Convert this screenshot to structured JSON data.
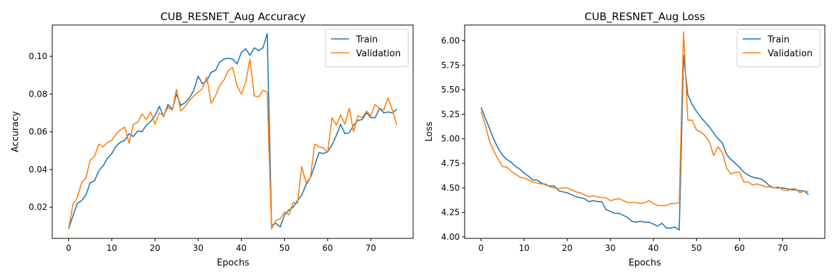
{
  "chart_data": [
    {
      "type": "line",
      "title": "CUB_RESNET_Aug Accuracy",
      "xlabel": "Epochs",
      "ylabel": "Accuracy",
      "xlim": [
        -3.8,
        79.8
      ],
      "ylim": [
        0.0035,
        0.1166
      ],
      "xticks": [
        0,
        10,
        20,
        30,
        40,
        50,
        60,
        70
      ],
      "yticks": [
        0.02,
        0.04,
        0.06,
        0.08,
        0.1
      ],
      "ytick_labels": [
        "0.02",
        "0.04",
        "0.06",
        "0.08",
        "0.10"
      ],
      "grid": false,
      "legend": "upper right",
      "x": [
        0,
        1,
        2,
        3,
        4,
        5,
        6,
        7,
        8,
        9,
        10,
        11,
        12,
        13,
        14,
        15,
        16,
        17,
        18,
        19,
        20,
        21,
        22,
        23,
        24,
        25,
        26,
        27,
        28,
        29,
        30,
        31,
        32,
        33,
        34,
        35,
        36,
        37,
        38,
        39,
        40,
        41,
        42,
        43,
        44,
        45,
        46,
        47,
        48,
        49,
        50,
        51,
        52,
        53,
        54,
        55,
        56,
        57,
        58,
        59,
        60,
        61,
        62,
        63,
        64,
        65,
        66,
        67,
        68,
        69,
        70,
        71,
        72,
        73,
        74,
        75,
        76
      ],
      "series": [
        {
          "name": "Train",
          "color": "#1f77b4",
          "values": [
            0.0085,
            0.0155,
            0.022,
            0.0235,
            0.0265,
            0.033,
            0.034,
            0.0395,
            0.042,
            0.046,
            0.0485,
            0.0525,
            0.0545,
            0.0555,
            0.059,
            0.0575,
            0.0605,
            0.06,
            0.0635,
            0.0655,
            0.0685,
            0.0735,
            0.068,
            0.0745,
            0.072,
            0.08,
            0.074,
            0.0755,
            0.078,
            0.082,
            0.0895,
            0.0855,
            0.087,
            0.0915,
            0.0925,
            0.097,
            0.0985,
            0.099,
            0.0985,
            0.096,
            0.102,
            0.104,
            0.1005,
            0.1045,
            0.103,
            0.1045,
            0.112,
            0.0105,
            0.0115,
            0.0095,
            0.016,
            0.0185,
            0.02,
            0.0235,
            0.0265,
            0.032,
            0.0355,
            0.042,
            0.049,
            0.0485,
            0.0495,
            0.053,
            0.058,
            0.064,
            0.059,
            0.0595,
            0.0635,
            0.066,
            0.0665,
            0.07,
            0.0675,
            0.0675,
            0.0725,
            0.07,
            0.0705,
            0.07,
            0.072
          ]
        },
        {
          "name": "Validation",
          "color": "#ff7f0e",
          "values": [
            0.0085,
            0.0215,
            0.025,
            0.033,
            0.0355,
            0.045,
            0.047,
            0.0535,
            0.052,
            0.0545,
            0.0555,
            0.059,
            0.061,
            0.0625,
            0.054,
            0.064,
            0.065,
            0.0695,
            0.0665,
            0.0705,
            0.064,
            0.07,
            0.0685,
            0.073,
            0.0715,
            0.0825,
            0.071,
            0.0735,
            0.0765,
            0.079,
            0.081,
            0.083,
            0.089,
            0.075,
            0.079,
            0.0845,
            0.0875,
            0.0925,
            0.094,
            0.0845,
            0.08,
            0.086,
            0.0985,
            0.079,
            0.0785,
            0.082,
            0.081,
            0.0085,
            0.013,
            0.014,
            0.0175,
            0.016,
            0.0225,
            0.022,
            0.0415,
            0.033,
            0.0355,
            0.0535,
            0.052,
            0.0515,
            0.049,
            0.0675,
            0.0635,
            0.069,
            0.064,
            0.0725,
            0.06,
            0.0685,
            0.0675,
            0.071,
            0.0685,
            0.0745,
            0.0725,
            0.0715,
            0.078,
            0.0715,
            0.0635
          ]
        }
      ]
    },
    {
      "type": "line",
      "title": "CUB_RESNET_Aug Loss",
      "xlabel": "Epochs",
      "ylabel": "Loss",
      "xlim": [
        -3.8,
        79.8
      ],
      "ylim": [
        3.985,
        6.16
      ],
      "xticks": [
        0,
        10,
        20,
        30,
        40,
        50,
        60,
        70
      ],
      "yticks": [
        4.0,
        4.25,
        4.5,
        4.75,
        5.0,
        5.25,
        5.5,
        5.75,
        6.0
      ],
      "ytick_labels": [
        "4.00",
        "4.25",
        "4.50",
        "4.75",
        "5.00",
        "5.25",
        "5.50",
        "5.75",
        "6.00"
      ],
      "grid": false,
      "legend": "upper right",
      "x": [
        0,
        1,
        2,
        3,
        4,
        5,
        6,
        7,
        8,
        9,
        10,
        11,
        12,
        13,
        14,
        15,
        16,
        17,
        18,
        19,
        20,
        21,
        22,
        23,
        24,
        25,
        26,
        27,
        28,
        29,
        30,
        31,
        32,
        33,
        34,
        35,
        36,
        37,
        38,
        39,
        40,
        41,
        42,
        43,
        44,
        45,
        46,
        47,
        48,
        49,
        50,
        51,
        52,
        53,
        54,
        55,
        56,
        57,
        58,
        59,
        60,
        61,
        62,
        63,
        64,
        65,
        66,
        67,
        68,
        69,
        70,
        71,
        72,
        73,
        74,
        75,
        76
      ],
      "series": [
        {
          "name": "Train",
          "color": "#1f77b4",
          "values": [
            5.32,
            5.21,
            5.1,
            4.99,
            4.9,
            4.83,
            4.79,
            4.76,
            4.72,
            4.69,
            4.65,
            4.62,
            4.58,
            4.58,
            4.55,
            4.53,
            4.52,
            4.52,
            4.47,
            4.46,
            4.45,
            4.43,
            4.41,
            4.4,
            4.39,
            4.36,
            4.37,
            4.36,
            4.36,
            4.28,
            4.26,
            4.24,
            4.24,
            4.22,
            4.2,
            4.16,
            4.15,
            4.16,
            4.15,
            4.15,
            4.13,
            4.11,
            4.14,
            4.09,
            4.09,
            4.1,
            4.07,
            5.85,
            5.45,
            5.35,
            5.28,
            5.22,
            5.17,
            5.12,
            5.06,
            5.0,
            4.96,
            4.84,
            4.79,
            4.75,
            4.71,
            4.66,
            4.63,
            4.61,
            4.6,
            4.59,
            4.56,
            4.52,
            4.5,
            4.5,
            4.5,
            4.49,
            4.48,
            4.48,
            4.47,
            4.47,
            4.43
          ]
        },
        {
          "name": "Validation",
          "color": "#ff7f0e",
          "values": [
            5.28,
            5.14,
            4.97,
            4.87,
            4.79,
            4.72,
            4.71,
            4.67,
            4.64,
            4.61,
            4.6,
            4.58,
            4.56,
            4.55,
            4.54,
            4.54,
            4.51,
            4.5,
            4.49,
            4.5,
            4.5,
            4.48,
            4.46,
            4.45,
            4.43,
            4.41,
            4.42,
            4.41,
            4.4,
            4.4,
            4.37,
            4.38,
            4.39,
            4.37,
            4.35,
            4.35,
            4.35,
            4.34,
            4.35,
            4.37,
            4.34,
            4.32,
            4.32,
            4.32,
            4.34,
            4.34,
            4.35,
            6.09,
            5.19,
            5.19,
            5.09,
            5.07,
            5.03,
            4.97,
            4.83,
            4.92,
            4.86,
            4.7,
            4.64,
            4.66,
            4.66,
            4.56,
            4.56,
            4.53,
            4.54,
            4.53,
            4.51,
            4.51,
            4.5,
            4.51,
            4.48,
            4.47,
            4.49,
            4.49,
            4.45,
            4.47,
            4.46
          ]
        }
      ]
    }
  ]
}
